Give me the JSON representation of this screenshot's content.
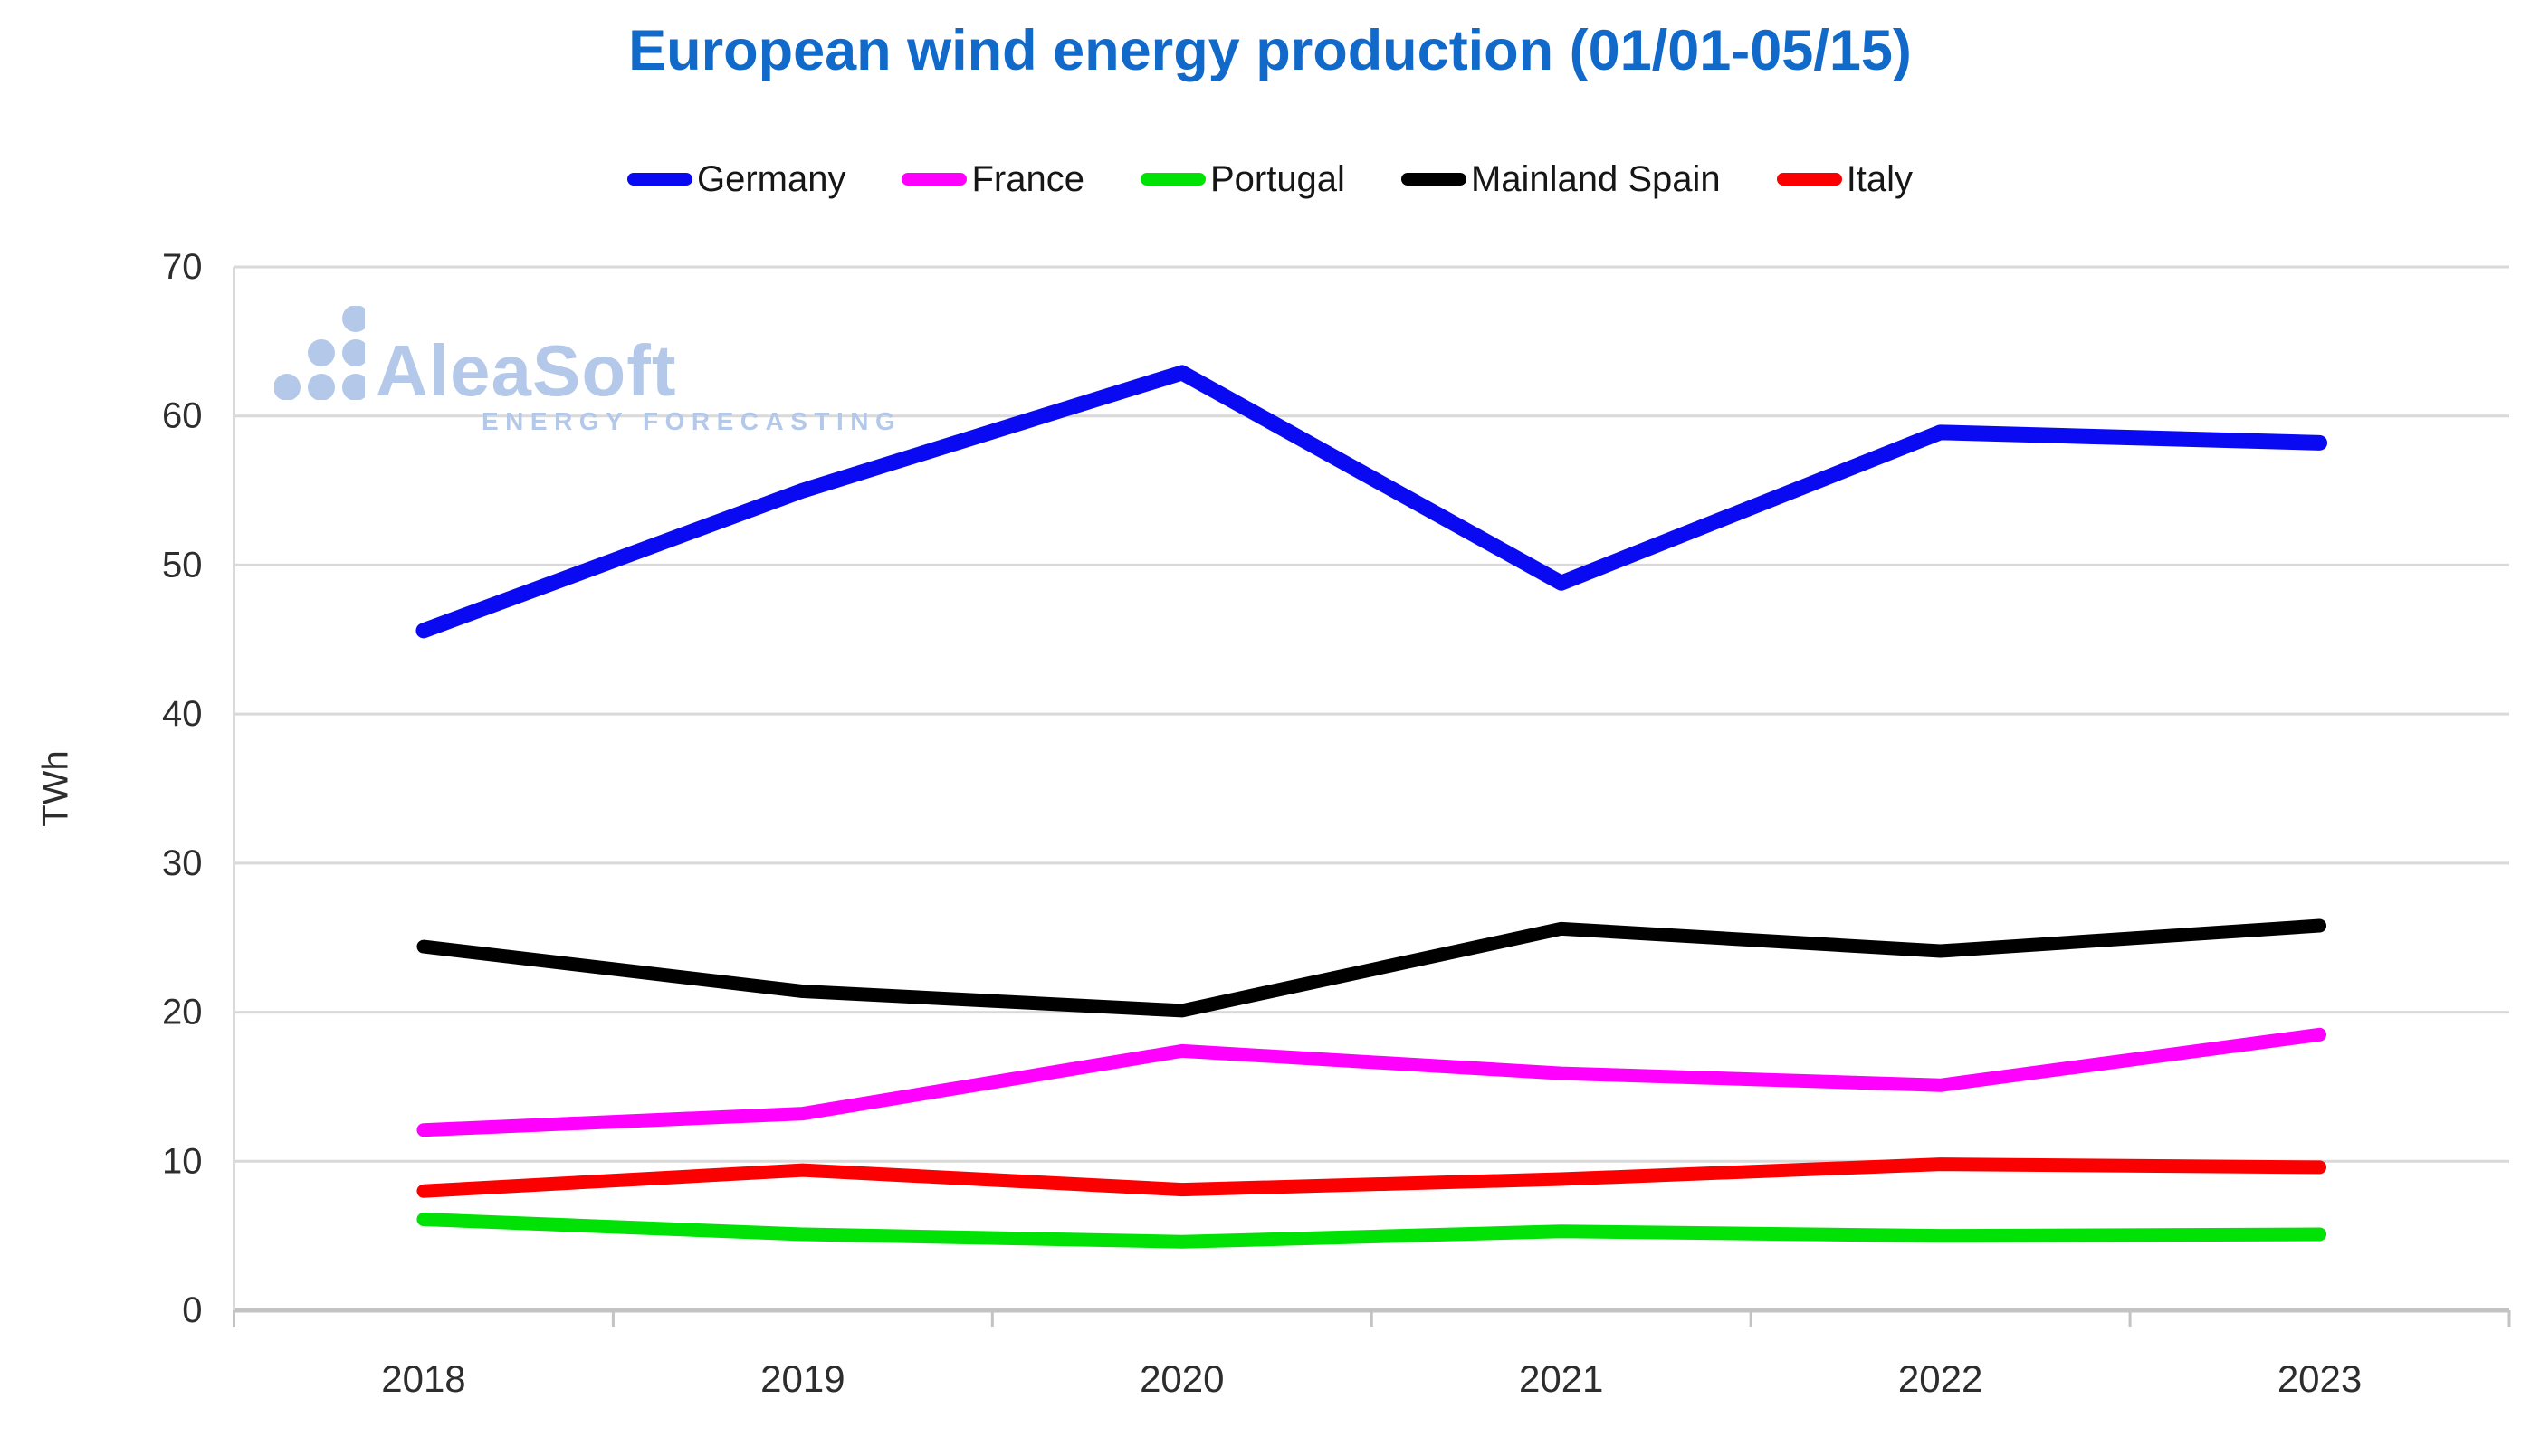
{
  "chart": {
    "title": "European wind energy production (01/01-05/15)"
  },
  "watermark": {
    "brand": "AleaSoft",
    "tagline": "ENERGY FORECASTING"
  },
  "colors": {
    "title": "#1169c9",
    "grid": "#d9d9d9",
    "axis": "#c3c3c3",
    "tick_text": "#2d2d2d",
    "watermark": "#b4c9e9"
  },
  "chart_data": {
    "type": "line",
    "x": [
      "2018",
      "2019",
      "2020",
      "2021",
      "2022",
      "2023"
    ],
    "series": [
      {
        "name": "Germany",
        "color": "#0a0af2",
        "values": [
          45.6,
          55.0,
          62.9,
          48.8,
          58.9,
          58.2
        ]
      },
      {
        "name": "France",
        "color": "#ff00ff",
        "values": [
          12.1,
          13.2,
          17.4,
          15.9,
          15.1,
          18.5
        ]
      },
      {
        "name": "Portugal",
        "color": "#00e106",
        "values": [
          6.1,
          5.1,
          4.6,
          5.3,
          5.0,
          5.1
        ]
      },
      {
        "name": "Mainland Spain",
        "color": "#000000",
        "values": [
          24.4,
          21.4,
          20.1,
          25.6,
          24.1,
          25.8
        ]
      },
      {
        "name": "Italy",
        "color": "#fa0000",
        "values": [
          8.0,
          9.4,
          8.1,
          8.8,
          9.8,
          9.6
        ]
      }
    ],
    "ylabel": "TWh",
    "ylim": [
      0,
      70
    ],
    "ytick_step": 10,
    "grid": "horizontal",
    "legend_position": "top"
  }
}
